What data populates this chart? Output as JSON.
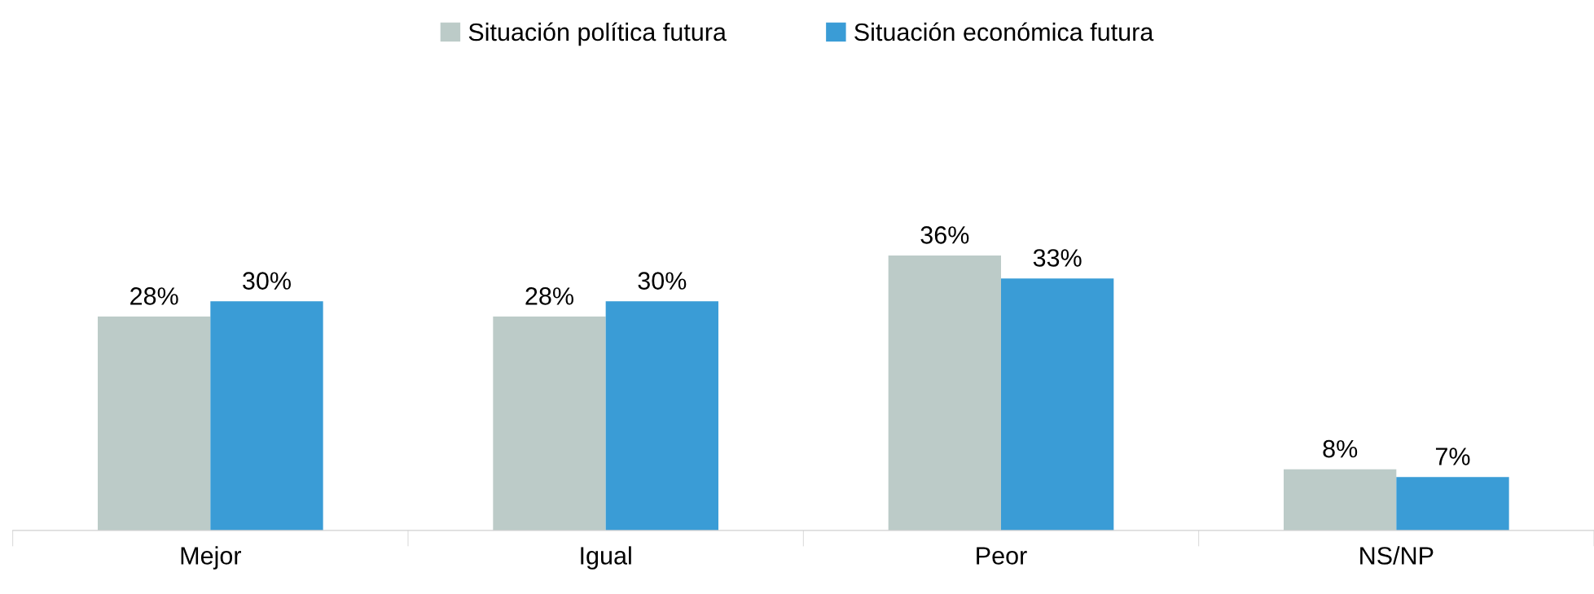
{
  "chart_data": {
    "type": "bar",
    "categories": [
      "Mejor",
      "Igual",
      "Peor",
      "NS/NP"
    ],
    "series": [
      {
        "name": "Situación política futura",
        "color": "#bccbc8",
        "values": [
          28,
          28,
          36,
          8
        ],
        "value_labels": [
          "28%",
          "28%",
          "36%",
          "8%"
        ]
      },
      {
        "name": "Situación económica futura",
        "color": "#3a9cd6",
        "values": [
          30,
          30,
          33,
          7
        ],
        "value_labels": [
          "30%",
          "30%",
          "33%",
          "7%"
        ]
      }
    ],
    "tick_labels": "x",
    "grid": false,
    "legend": "top"
  }
}
